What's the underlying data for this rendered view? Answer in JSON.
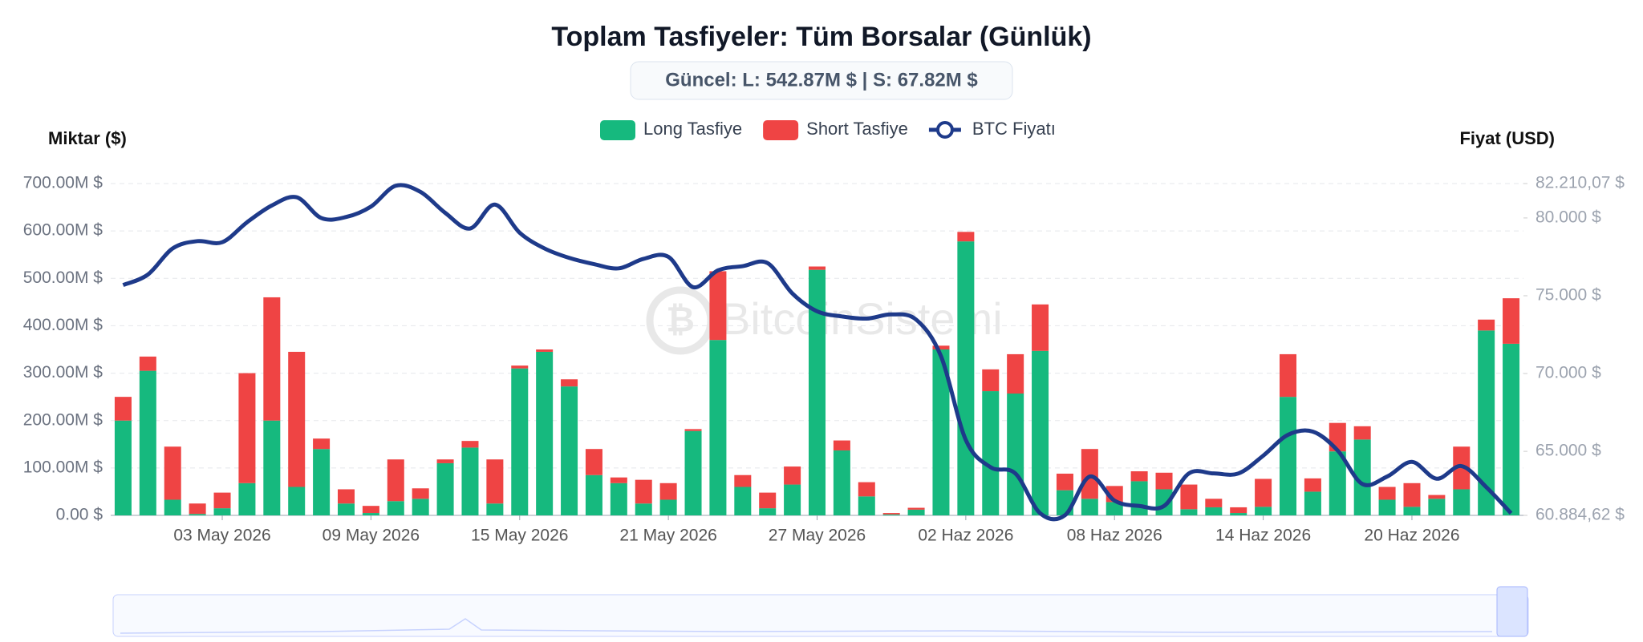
{
  "chart_data": {
    "type": "bar",
    "stacked": true,
    "title": "Toplam Tasfiyeler: Tüm Borsalar (Günlük)",
    "subtitle": "Güncel: L: 542.87M $ | S: 67.82M $",
    "ylabel": "Miktar ($)",
    "y2label": "Fiyat (USD)",
    "watermark": "BitcoinSistemi",
    "categories": [
      null,
      null,
      null,
      null,
      "03 May 2026",
      null,
      null,
      null,
      null,
      null,
      "09 May 2026",
      null,
      null,
      null,
      null,
      null,
      "15 May 2026",
      null,
      null,
      null,
      null,
      null,
      "21 May 2026",
      null,
      null,
      null,
      null,
      null,
      "27 May 2026",
      null,
      null,
      null,
      null,
      null,
      "02 Haz 2026",
      null,
      null,
      null,
      null,
      null,
      "08 Haz 2026",
      null,
      null,
      null,
      null,
      null,
      "14 Haz 2026",
      null,
      null,
      null,
      null,
      null,
      "20 Haz 2026",
      null,
      null,
      null,
      null
    ],
    "series": [
      {
        "name": "Long Tasfiye",
        "type": "bar",
        "color": "#16b97e",
        "values": [
          200,
          305,
          33,
          3,
          15,
          68,
          200,
          60,
          140,
          25,
          5,
          30,
          35,
          110,
          143,
          25,
          310,
          345,
          272,
          85,
          68,
          25,
          33,
          178,
          370,
          60,
          15,
          65,
          518,
          137,
          40,
          2,
          12,
          350,
          578,
          262,
          257,
          347,
          53,
          35,
          28,
          72,
          55,
          13,
          17,
          5,
          18,
          250,
          50,
          135,
          160,
          33,
          18,
          35,
          55,
          390,
          362
        ]
      },
      {
        "name": "Short Tasfiye",
        "type": "bar",
        "color": "#ef4444",
        "values": [
          50,
          30,
          112,
          22,
          33,
          232,
          260,
          285,
          22,
          30,
          15,
          88,
          22,
          8,
          14,
          93,
          6,
          5,
          15,
          55,
          12,
          50,
          35,
          4,
          145,
          25,
          33,
          38,
          7,
          21,
          30,
          3,
          4,
          8,
          20,
          46,
          83,
          98,
          35,
          105,
          34,
          21,
          35,
          52,
          18,
          12,
          59,
          90,
          28,
          60,
          28,
          27,
          50,
          8,
          90,
          23,
          96
        ]
      },
      {
        "name": "BTC Fiyatı",
        "type": "line",
        "axis": "y2",
        "color": "#1e3a8a",
        "values": [
          75685,
          76360,
          78040,
          78510,
          78440,
          79720,
          80800,
          81330,
          79990,
          80060,
          80730,
          82070,
          81670,
          80320,
          79320,
          80860,
          79050,
          78040,
          77430,
          77030,
          76760,
          77370,
          77500,
          75550,
          76630,
          76900,
          77100,
          75150,
          74000,
          73670,
          73530,
          73800,
          73460,
          71110,
          65730,
          63980,
          63580,
          61020,
          60890,
          63380,
          61830,
          61490,
          61490,
          63580,
          63580,
          63580,
          64720,
          66060,
          66270,
          65060,
          62900,
          63380,
          64320,
          63240,
          64050,
          62700,
          61020
        ]
      }
    ],
    "ylim": [
      0,
      700
    ],
    "yticks": [
      {
        "value": 0,
        "label": "0.00 $"
      },
      {
        "value": 100,
        "label": "100.00M $"
      },
      {
        "value": 200,
        "label": "200.00M $"
      },
      {
        "value": 300,
        "label": "300.00M $"
      },
      {
        "value": 400,
        "label": "400.00M $"
      },
      {
        "value": 500,
        "label": "500.00M $"
      },
      {
        "value": 600,
        "label": "600.00M $"
      },
      {
        "value": 700,
        "label": "700.00M $"
      }
    ],
    "y2lim": [
      60884.62,
      82210.07
    ],
    "y2ticks": [
      {
        "value": 60884.62,
        "label": "60.884,62 $"
      },
      {
        "value": 65000,
        "label": "65.000 $"
      },
      {
        "value": 70000,
        "label": "70.000 $"
      },
      {
        "value": 75000,
        "label": "75.000 $"
      },
      {
        "value": 80000,
        "label": "80.000 $"
      },
      {
        "value": 82210.07,
        "label": "82.210,07 $"
      }
    ],
    "grid": true,
    "legend": "top"
  }
}
